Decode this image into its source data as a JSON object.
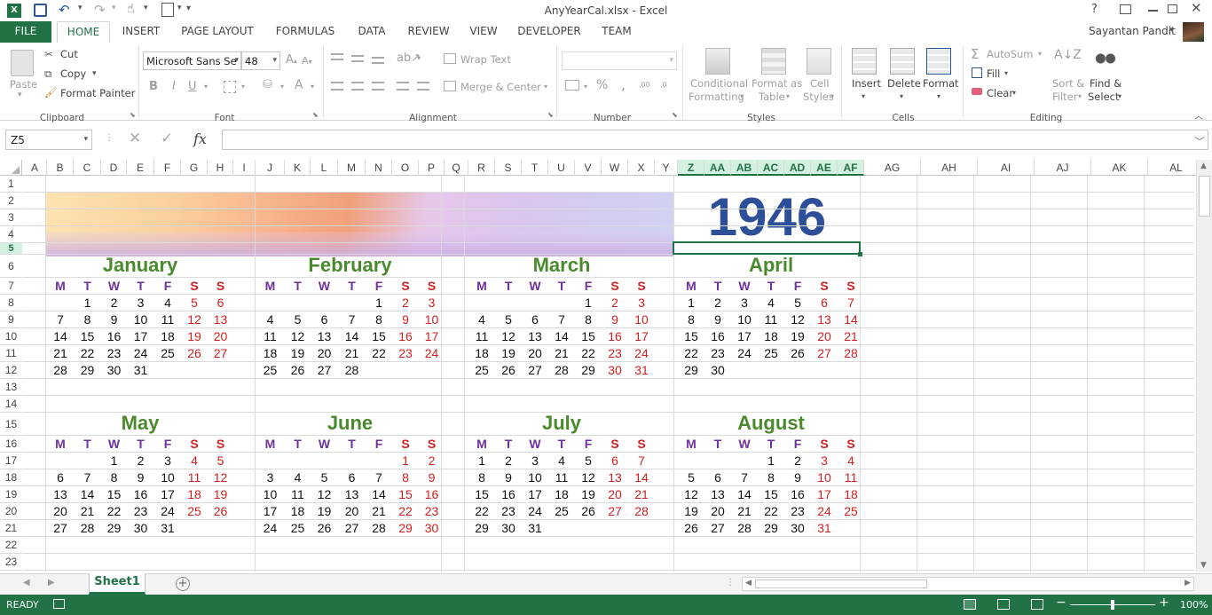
{
  "window": {
    "title": "AnyYearCal.xlsx - Excel",
    "help": "?",
    "user": "Sayantan Pandit"
  },
  "tabs": [
    "FILE",
    "HOME",
    "INSERT",
    "PAGE LAYOUT",
    "FORMULAS",
    "DATA",
    "REVIEW",
    "VIEW",
    "DEVELOPER",
    "TEAM"
  ],
  "ribbon": {
    "clipboard": {
      "paste": "Paste",
      "cut": "Cut",
      "copy": "Copy",
      "format_painter": "Format Painter",
      "label": "Clipboard"
    },
    "font": {
      "name": "Microsoft Sans Se",
      "size": "48",
      "bold": "B",
      "italic": "I",
      "underline": "U",
      "label": "Font"
    },
    "alignment": {
      "wrap": "Wrap Text",
      "merge": "Merge & Center",
      "label": "Alignment"
    },
    "number": {
      "format": "",
      "percent": "%",
      "label": "Number",
      "inc_decimal": ".00",
      "dec_decimal": ".0"
    },
    "styles": {
      "conditional": "Conditional",
      "conditional2": "Formatting",
      "format_as": "Format as",
      "format_as2": "Table",
      "cell": "Cell",
      "cell2": "Styles",
      "label": "Styles"
    },
    "cells": {
      "insert": "Insert",
      "delete": "Delete",
      "format": "Format",
      "label": "Cells"
    },
    "editing": {
      "autosum": "AutoSum",
      "fill": "Fill",
      "clear": "Clear",
      "sort": "Sort &",
      "sort2": "Filter",
      "find": "Find &",
      "find2": "Select",
      "label": "Editing"
    }
  },
  "formula_bar": {
    "name_box": "Z5",
    "fx": "fx",
    "value": ""
  },
  "columns": [
    "A",
    "B",
    "C",
    "D",
    "E",
    "F",
    "G",
    "H",
    "I",
    "J",
    "K",
    "L",
    "M",
    "N",
    "O",
    "P",
    "Q",
    "R",
    "S",
    "T",
    "U",
    "V",
    "W",
    "X",
    "Y",
    "Z",
    "AA",
    "AB",
    "AC",
    "AD",
    "AE",
    "AF",
    "AG",
    "AH",
    "AI",
    "AJ",
    "AK",
    "AL"
  ],
  "rows": [
    "1",
    "2",
    "3",
    "4",
    "5",
    "6",
    "7",
    "8",
    "9",
    "10",
    "11",
    "12",
    "13",
    "14",
    "15",
    "16",
    "17",
    "18",
    "19",
    "20",
    "21",
    "22",
    "23"
  ],
  "calendar": {
    "year": "1946",
    "dow": [
      "M",
      "T",
      "W",
      "T",
      "F",
      "S",
      "S"
    ],
    "months": [
      {
        "name": "January",
        "weeks": [
          [
            "",
            "1",
            "2",
            "3",
            "4",
            "5",
            "6"
          ],
          [
            "7",
            "8",
            "9",
            "10",
            "11",
            "12",
            "13"
          ],
          [
            "14",
            "15",
            "16",
            "17",
            "18",
            "19",
            "20"
          ],
          [
            "21",
            "22",
            "23",
            "24",
            "25",
            "26",
            "27"
          ],
          [
            "28",
            "29",
            "30",
            "31",
            "",
            "",
            ""
          ]
        ]
      },
      {
        "name": "February",
        "weeks": [
          [
            "",
            "",
            "",
            "",
            "1",
            "2",
            "3"
          ],
          [
            "4",
            "5",
            "6",
            "7",
            "8",
            "9",
            "10"
          ],
          [
            "11",
            "12",
            "13",
            "14",
            "15",
            "16",
            "17"
          ],
          [
            "18",
            "19",
            "20",
            "21",
            "22",
            "23",
            "24"
          ],
          [
            "25",
            "26",
            "27",
            "28",
            "",
            "",
            ""
          ]
        ]
      },
      {
        "name": "March",
        "weeks": [
          [
            "",
            "",
            "",
            "",
            "1",
            "2",
            "3"
          ],
          [
            "4",
            "5",
            "6",
            "7",
            "8",
            "9",
            "10"
          ],
          [
            "11",
            "12",
            "13",
            "14",
            "15",
            "16",
            "17"
          ],
          [
            "18",
            "19",
            "20",
            "21",
            "22",
            "23",
            "24"
          ],
          [
            "25",
            "26",
            "27",
            "28",
            "29",
            "30",
            "31"
          ]
        ]
      },
      {
        "name": "April",
        "weeks": [
          [
            "1",
            "2",
            "3",
            "4",
            "5",
            "6",
            "7"
          ],
          [
            "8",
            "9",
            "10",
            "11",
            "12",
            "13",
            "14"
          ],
          [
            "15",
            "16",
            "17",
            "18",
            "19",
            "20",
            "21"
          ],
          [
            "22",
            "23",
            "24",
            "25",
            "26",
            "27",
            "28"
          ],
          [
            "29",
            "30",
            "",
            "",
            "",
            "",
            ""
          ]
        ]
      },
      {
        "name": "May",
        "weeks": [
          [
            "",
            "",
            "1",
            "2",
            "3",
            "4",
            "5"
          ],
          [
            "6",
            "7",
            "8",
            "9",
            "10",
            "11",
            "12"
          ],
          [
            "13",
            "14",
            "15",
            "16",
            "17",
            "18",
            "19"
          ],
          [
            "20",
            "21",
            "22",
            "23",
            "24",
            "25",
            "26"
          ],
          [
            "27",
            "28",
            "29",
            "30",
            "31",
            "",
            ""
          ]
        ]
      },
      {
        "name": "June",
        "weeks": [
          [
            "",
            "",
            "",
            "",
            "",
            "1",
            "2"
          ],
          [
            "3",
            "4",
            "5",
            "6",
            "7",
            "8",
            "9"
          ],
          [
            "10",
            "11",
            "12",
            "13",
            "14",
            "15",
            "16"
          ],
          [
            "17",
            "18",
            "19",
            "20",
            "21",
            "22",
            "23"
          ],
          [
            "24",
            "25",
            "26",
            "27",
            "28",
            "29",
            "30"
          ]
        ]
      },
      {
        "name": "July",
        "weeks": [
          [
            "1",
            "2",
            "3",
            "4",
            "5",
            "6",
            "7"
          ],
          [
            "8",
            "9",
            "10",
            "11",
            "12",
            "13",
            "14"
          ],
          [
            "15",
            "16",
            "17",
            "18",
            "19",
            "20",
            "21"
          ],
          [
            "22",
            "23",
            "24",
            "25",
            "26",
            "27",
            "28"
          ],
          [
            "29",
            "30",
            "31",
            "",
            "",
            "",
            ""
          ]
        ]
      },
      {
        "name": "August",
        "weeks": [
          [
            "",
            "",
            "",
            "1",
            "2",
            "3",
            "4"
          ],
          [
            "5",
            "6",
            "7",
            "8",
            "9",
            "10",
            "11"
          ],
          [
            "12",
            "13",
            "14",
            "15",
            "16",
            "17",
            "18"
          ],
          [
            "19",
            "20",
            "21",
            "22",
            "23",
            "24",
            "25"
          ],
          [
            "26",
            "27",
            "28",
            "29",
            "30",
            "31",
            ""
          ]
        ]
      }
    ]
  },
  "sheets": [
    {
      "name": "Sheet1",
      "active": true
    }
  ],
  "status": {
    "ready": "READY",
    "zoom": "100%"
  },
  "colors": {
    "accent": "#217346",
    "weekend": "#d21f1f",
    "dow": "#7030a0",
    "month": "#4a8a2c",
    "year": "#2d4f9a"
  }
}
